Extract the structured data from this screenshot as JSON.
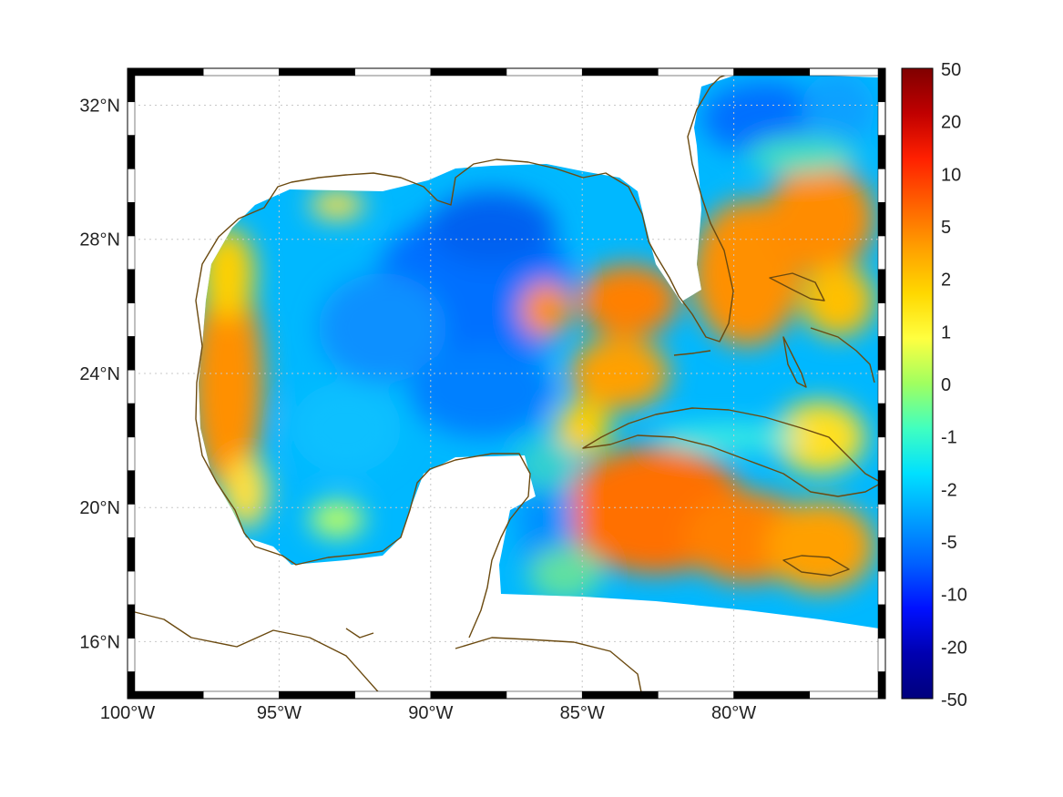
{
  "map": {
    "lon_range": [
      -100,
      -75
    ],
    "lat_range": [
      14.3,
      33.1
    ],
    "grid": true,
    "lon_ticks": [
      {
        "value": -100,
        "label": "100°W"
      },
      {
        "value": -95,
        "label": "95°W"
      },
      {
        "value": -90,
        "label": "90°W"
      },
      {
        "value": -85,
        "label": "85°W"
      },
      {
        "value": -80,
        "label": "80°W"
      }
    ],
    "lat_ticks": [
      {
        "value": 32,
        "label": "32°N"
      },
      {
        "value": 28,
        "label": "28°N"
      },
      {
        "value": 24,
        "label": "24°N"
      },
      {
        "value": 20,
        "label": "20°N"
      },
      {
        "value": 16,
        "label": "16°N"
      }
    ],
    "coastline_color": "#6b4a10",
    "frame_colors": [
      "#000000",
      "#ffffff"
    ]
  },
  "colorbar": {
    "ticks": [
      "50",
      "20",
      "10",
      "5",
      "2",
      "1",
      "0",
      "-1",
      "-2",
      "-5",
      "-10",
      "-20",
      "-50"
    ],
    "colors": [
      "#800000",
      "#c00000",
      "#ff2000",
      "#ff6000",
      "#ffa000",
      "#ffd800",
      "#ffff40",
      "#a0ff60",
      "#40ffc0",
      "#00e0ff",
      "#00a0ff",
      "#0060ff",
      "#0010ff",
      "#0000b0",
      "#00007c"
    ]
  }
}
